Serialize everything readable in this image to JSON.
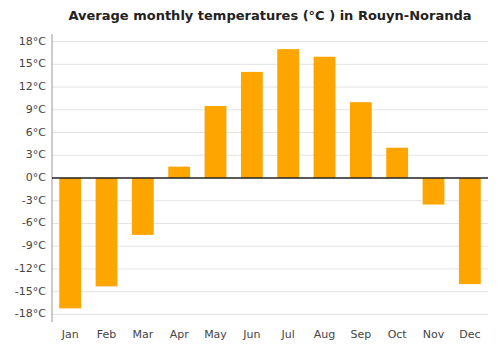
{
  "chart_data": {
    "type": "bar",
    "title": "Average monthly temperatures (°C ) in Rouyn-Noranda",
    "categories": [
      "Jan",
      "Feb",
      "Mar",
      "Apr",
      "May",
      "Jun",
      "Jul",
      "Aug",
      "Sep",
      "Oct",
      "Nov",
      "Dec"
    ],
    "values": [
      -17.2,
      -14.3,
      -7.5,
      1.5,
      9.5,
      14.0,
      17.0,
      16.0,
      10.0,
      4.0,
      -3.5,
      -14.0
    ],
    "color": "#FFA500",
    "ylim": [
      -19,
      19
    ],
    "yticks": [
      {
        "value": -18,
        "label": "-18°C"
      },
      {
        "value": -15,
        "label": "-15°C"
      },
      {
        "value": -12,
        "label": "-12°C"
      },
      {
        "value": -9,
        "label": "-9°C"
      },
      {
        "value": -6,
        "label": "-6°C"
      },
      {
        "value": -3,
        "label": "-3°C"
      },
      {
        "value": 0,
        "label": "0°C"
      },
      {
        "value": 3,
        "label": "3°C"
      },
      {
        "value": 6,
        "label": "6°C"
      },
      {
        "value": 9,
        "label": "9°C"
      },
      {
        "value": 12,
        "label": "12°C"
      },
      {
        "value": 15,
        "label": "15°C"
      },
      {
        "value": 18,
        "label": "18°C"
      }
    ],
    "grid": true
  }
}
